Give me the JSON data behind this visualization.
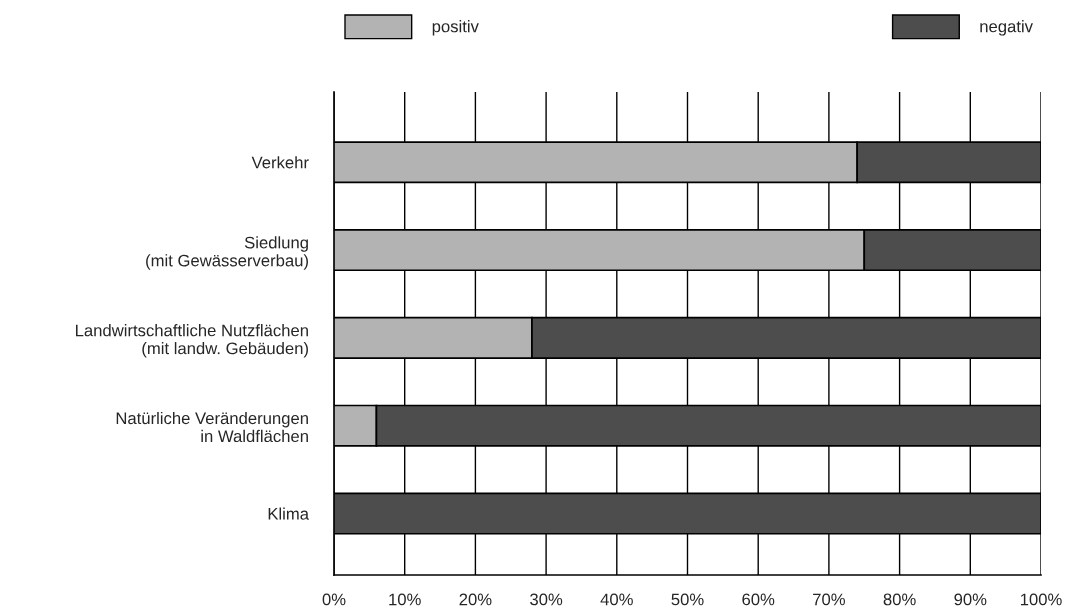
{
  "chart_data": {
    "type": "bar",
    "orientation": "horizontal",
    "stacked": true,
    "categories": [
      "Verkehr",
      "Siedlung\n(mit Gewässerverbau)",
      "Landwirtschaftliche Nutzflächen\n(mit landw. Gebäuden)",
      "Natürliche Veränderungen\nin Waldflächen",
      "Klima"
    ],
    "series": [
      {
        "name": "positiv",
        "color": "#b3b3b3",
        "values": [
          74,
          75,
          28,
          6,
          0
        ]
      },
      {
        "name": "negativ",
        "color": "#4d4d4d",
        "values": [
          26,
          25,
          72,
          94,
          100
        ]
      }
    ],
    "xlim": [
      0,
      100
    ],
    "xticks": [
      {
        "value": 0,
        "label": "0%"
      },
      {
        "value": 10,
        "label": "10%"
      },
      {
        "value": 20,
        "label": "20%"
      },
      {
        "value": 30,
        "label": "30%"
      },
      {
        "value": 40,
        "label": "40%"
      },
      {
        "value": 50,
        "label": "50%"
      },
      {
        "value": 60,
        "label": "60%"
      },
      {
        "value": 70,
        "label": "70%"
      },
      {
        "value": 80,
        "label": "80%"
      },
      {
        "value": 90,
        "label": "90%"
      },
      {
        "value": 100,
        "label": "100%"
      }
    ],
    "grid": "x",
    "legend": "top"
  }
}
